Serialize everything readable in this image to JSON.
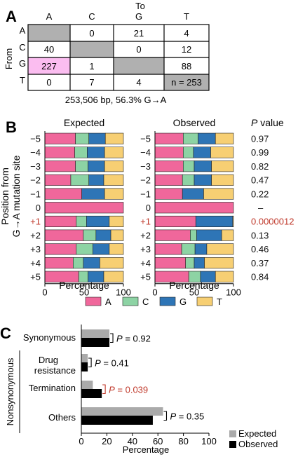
{
  "panels": {
    "a": "A",
    "b": "B",
    "c": "C"
  },
  "colors": {
    "A": "#f0679b",
    "C": "#8dd3a4",
    "G": "#2e75b6",
    "T": "#f7cf73",
    "diag": "#b0b0b0",
    "highlight": "#fbbdf0",
    "expected": "#aaaaaa",
    "observed": "#000000",
    "sig": "#c0392b"
  },
  "chart_data": [
    {
      "type": "table",
      "row_header": "From",
      "col_header": "To",
      "columns": [
        "A",
        "C",
        "G",
        "T"
      ],
      "rows": [
        "A",
        "C",
        "G",
        "T"
      ],
      "cells": [
        [
          "",
          "0",
          "21",
          "4"
        ],
        [
          "40",
          "",
          "0",
          "12"
        ],
        [
          "227",
          "1",
          "",
          "88"
        ],
        [
          "0",
          "7",
          "4",
          "n = 253"
        ]
      ],
      "caption": "253,506 bp, 56.3% G→A"
    },
    {
      "type": "bar",
      "orientation": "horizontal",
      "stacked": true,
      "ylabel": [
        "Position from",
        "G→A mutation site"
      ],
      "positions": [
        "−5",
        "−4",
        "−3",
        "−2",
        "−1",
        "0",
        "+1",
        "+2",
        "+3",
        "+4",
        "+5"
      ],
      "legend": [
        "A",
        "C",
        "G",
        "T"
      ],
      "xlabel": "Percentage",
      "xticks": [
        "0",
        "50",
        "100"
      ],
      "xlim": [
        0,
        100
      ],
      "pvalue_header": "P value",
      "pvalues": [
        "0.97",
        "0.99",
        "0.82",
        "0.47",
        "0.22",
        "–",
        "0.0000012",
        "0.13",
        "0.46",
        "0.37",
        "0.84"
      ],
      "subplots": [
        {
          "title": "Expected",
          "values": [
            [
              39,
              17,
              21,
              23
            ],
            [
              38,
              16,
              22,
              24
            ],
            [
              39,
              16,
              21,
              24
            ],
            [
              33,
              23,
              19,
              25
            ],
            [
              47,
              0,
              29,
              24
            ],
            [
              100,
              0,
              0,
              0
            ],
            [
              40,
              13,
              29,
              18
            ],
            [
              49,
              16,
              19,
              16
            ],
            [
              40,
              21,
              21,
              18
            ],
            [
              36,
              13,
              21,
              30
            ],
            [
              43,
              12,
              20,
              25
            ]
          ]
        },
        {
          "title": "Observed",
          "values": [
            [
              36,
              19,
              22,
              23
            ],
            [
              36,
              13,
              22,
              29
            ],
            [
              36,
              14,
              22,
              28
            ],
            [
              35,
              15,
              22,
              28
            ],
            [
              35,
              0,
              27,
              38
            ],
            [
              100,
              0,
              0,
              0
            ],
            [
              52,
              0,
              47,
              1
            ],
            [
              45,
              8,
              32,
              15
            ],
            [
              34,
              17,
              15,
              34
            ],
            [
              39,
              11,
              13,
              37
            ],
            [
              43,
              15,
              19,
              23
            ]
          ]
        }
      ]
    },
    {
      "type": "bar",
      "orientation": "horizontal",
      "categories": [
        "Synonymous",
        "Drug resistance",
        "Termination",
        "Others"
      ],
      "group_label": "Nonsynonymous",
      "series": [
        {
          "name": "Expected",
          "values": [
            22,
            5,
            9,
            64
          ]
        },
        {
          "name": "Observed",
          "values": [
            22,
            5,
            16,
            56
          ]
        }
      ],
      "pvalues": [
        "P = 0.92",
        "P = 0.41",
        "P = 0.039",
        "P = 0.35"
      ],
      "xlabel": "Percentage",
      "xlim": [
        0,
        100
      ],
      "xticks": [
        0,
        20,
        40,
        60,
        80,
        100
      ]
    }
  ]
}
